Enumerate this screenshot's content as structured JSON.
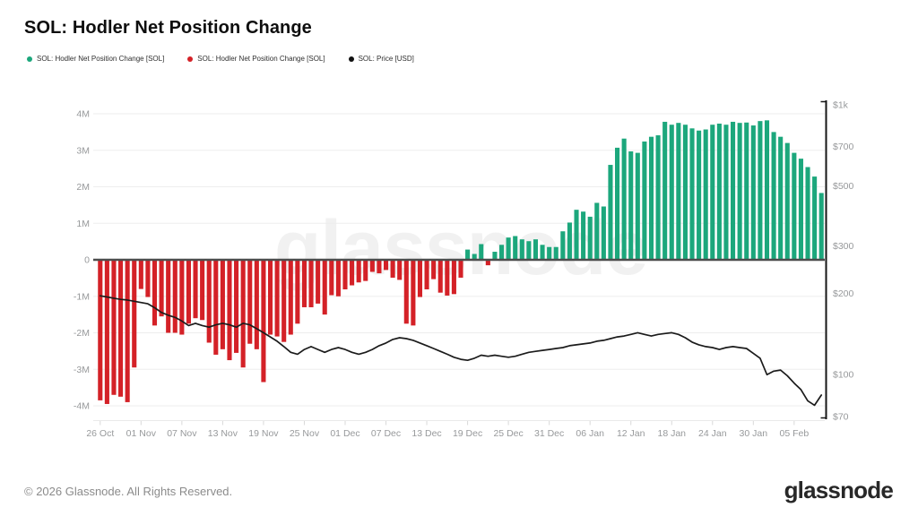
{
  "page": {
    "title": "SOL: Hodler Net Position Change",
    "footer_copyright": "© 2026 Glassnode. All Rights Reserved.",
    "brand_logo": "glassnode",
    "watermark": "glassnode"
  },
  "legend": {
    "items": [
      {
        "label": "SOL: Hodler Net Position Change [SOL]",
        "color": "#1ca77c"
      },
      {
        "label": "SOL: Hodler Net Position Change [SOL]",
        "color": "#d42127"
      },
      {
        "label": "SOL: Price [USD]",
        "color": "#111111"
      }
    ]
  },
  "chart_data": {
    "type": "combo",
    "title": "SOL: Hodler Net Position Change",
    "x": {
      "dates": [
        "26 Oct",
        "27 Oct",
        "28 Oct",
        "29 Oct",
        "30 Oct",
        "31 Oct",
        "01 Nov",
        "02 Nov",
        "03 Nov",
        "04 Nov",
        "05 Nov",
        "06 Nov",
        "07 Nov",
        "08 Nov",
        "09 Nov",
        "10 Nov",
        "11 Nov",
        "12 Nov",
        "13 Nov",
        "14 Nov",
        "15 Nov",
        "16 Nov",
        "17 Nov",
        "18 Nov",
        "19 Nov",
        "20 Nov",
        "21 Nov",
        "22 Nov",
        "23 Nov",
        "24 Nov",
        "25 Nov",
        "26 Nov",
        "27 Nov",
        "28 Nov",
        "29 Nov",
        "30 Nov",
        "01 Dec",
        "02 Dec",
        "03 Dec",
        "04 Dec",
        "05 Dec",
        "06 Dec",
        "07 Dec",
        "08 Dec",
        "09 Dec",
        "10 Dec",
        "11 Dec",
        "12 Dec",
        "13 Dec",
        "14 Dec",
        "15 Dec",
        "16 Dec",
        "17 Dec",
        "18 Dec",
        "19 Dec",
        "20 Dec",
        "21 Dec",
        "22 Dec",
        "23 Dec",
        "24 Dec",
        "25 Dec",
        "26 Dec",
        "27 Dec",
        "28 Dec",
        "29 Dec",
        "30 Dec",
        "31 Dec",
        "01 Jan",
        "02 Jan",
        "03 Jan",
        "04 Jan",
        "05 Jan",
        "06 Jan",
        "07 Jan",
        "08 Jan",
        "09 Jan",
        "10 Jan",
        "11 Jan",
        "12 Jan",
        "13 Jan",
        "14 Jan",
        "15 Jan",
        "16 Jan",
        "17 Jan",
        "18 Jan",
        "19 Jan",
        "20 Jan",
        "21 Jan",
        "22 Jan",
        "23 Jan",
        "24 Jan",
        "25 Jan",
        "26 Jan",
        "27 Jan",
        "28 Jan",
        "29 Jan",
        "30 Jan",
        "31 Jan",
        "01 Feb",
        "02 Feb",
        "03 Feb",
        "04 Feb",
        "05 Feb",
        "06 Feb",
        "07 Feb",
        "08 Feb",
        "09 Feb"
      ],
      "tick_interval_days": 6,
      "tick_labels": [
        "26 Oct",
        "01 Nov",
        "07 Nov",
        "13 Nov",
        "19 Nov",
        "25 Nov",
        "01 Dec",
        "07 Dec",
        "13 Dec",
        "19 Dec",
        "25 Dec",
        "31 Dec",
        "06 Jan",
        "12 Jan",
        "18 Jan",
        "24 Jan",
        "30 Jan",
        "05 Feb"
      ]
    },
    "series": [
      {
        "name": "SOL: Hodler Net Position Change [SOL]",
        "type": "bar",
        "axis": "left",
        "unit": "SOL (millions)",
        "values_millions": [
          -3.85,
          -3.95,
          -3.7,
          -3.75,
          -3.9,
          -2.95,
          -0.8,
          -1.02,
          -1.8,
          -1.55,
          -2.0,
          -2.0,
          -2.05,
          -1.75,
          -1.6,
          -1.65,
          -2.27,
          -2.6,
          -2.45,
          -2.75,
          -2.55,
          -2.95,
          -2.3,
          -2.45,
          -3.35,
          -2.05,
          -2.1,
          -2.25,
          -2.05,
          -1.75,
          -1.3,
          -1.3,
          -1.2,
          -1.5,
          -0.97,
          -1.0,
          -0.81,
          -0.7,
          -0.62,
          -0.58,
          -0.33,
          -0.37,
          -0.28,
          -0.49,
          -0.55,
          -1.75,
          -1.8,
          -1.02,
          -0.81,
          -0.53,
          -0.9,
          -0.98,
          -0.94,
          -0.49,
          0.28,
          0.16,
          0.43,
          -0.15,
          0.22,
          0.41,
          0.61,
          0.65,
          0.56,
          0.51,
          0.56,
          0.41,
          0.35,
          0.35,
          0.78,
          1.02,
          1.37,
          1.32,
          1.18,
          1.56,
          1.46,
          2.6,
          3.07,
          3.32,
          2.97,
          2.93,
          3.24,
          3.37,
          3.41,
          3.78,
          3.7,
          3.75,
          3.7,
          3.6,
          3.54,
          3.57,
          3.7,
          3.73,
          3.7,
          3.78,
          3.75,
          3.76,
          3.68,
          3.8,
          3.82,
          3.5,
          3.37,
          3.2,
          2.93,
          2.77,
          2.54,
          2.28,
          1.83
        ]
      },
      {
        "name": "SOL: Price [USD]",
        "type": "line",
        "axis": "right",
        "unit": "USD",
        "values": [
          196,
          194,
          192,
          190,
          189,
          187,
          185,
          183,
          177,
          170,
          166,
          163,
          158,
          152,
          155,
          152,
          150,
          153,
          155,
          153,
          150,
          155,
          153,
          148,
          143,
          138,
          133,
          127,
          121,
          119,
          124,
          127,
          124,
          121,
          124,
          126,
          124,
          121,
          119,
          121,
          124,
          128,
          131,
          135,
          137,
          136,
          134,
          131,
          128,
          125,
          122,
          119,
          116,
          114,
          113,
          115,
          118,
          117,
          118,
          117,
          116,
          117,
          119,
          121,
          122,
          123,
          124,
          125,
          126,
          128,
          129,
          130,
          131,
          133,
          134,
          136,
          138,
          139,
          141,
          143,
          141,
          139,
          141,
          142,
          143,
          141,
          137,
          132,
          129,
          127,
          126,
          124,
          126,
          127,
          126,
          125,
          120,
          115,
          100,
          103,
          104,
          99,
          93,
          88,
          80,
          77,
          84
        ]
      }
    ],
    "left_axis": {
      "title": "Hodler Net Position Change [SOL]",
      "scale": "linear",
      "range_millions": [
        -4.5,
        4.5
      ],
      "ticks": [
        {
          "label": "4M",
          "value": 4
        },
        {
          "label": "3M",
          "value": 3
        },
        {
          "label": "2M",
          "value": 2
        },
        {
          "label": "1M",
          "value": 1
        },
        {
          "label": "0",
          "value": 0
        },
        {
          "label": "-1M",
          "value": -1
        },
        {
          "label": "-2M",
          "value": -2
        },
        {
          "label": "-3M",
          "value": -3
        },
        {
          "label": "-4M",
          "value": -4
        }
      ]
    },
    "right_axis": {
      "title": "Price [USD]",
      "scale": "log",
      "range_usd": [
        70,
        1000
      ],
      "ticks": [
        {
          "label": "$1k",
          "value": 1000
        },
        {
          "label": "$700",
          "value": 700
        },
        {
          "label": "$500",
          "value": 500
        },
        {
          "label": "$300",
          "value": 300
        },
        {
          "label": "$200",
          "value": 200
        },
        {
          "label": "$100",
          "value": 100
        },
        {
          "label": "$70",
          "value": 70
        }
      ]
    },
    "layout_hints": {
      "grid": "horizontal-light",
      "legend_position": "top-left",
      "zero_line": true
    },
    "colors": {
      "positive": "#1ca77c",
      "negative": "#d42127",
      "price_line": "#1b1b1b",
      "grid": "#ededed",
      "zero_line": "#4d4d4d",
      "axis_text": "#97999b",
      "tick_mark": "#d9d9d9",
      "right_axis_line": "#161616"
    }
  }
}
